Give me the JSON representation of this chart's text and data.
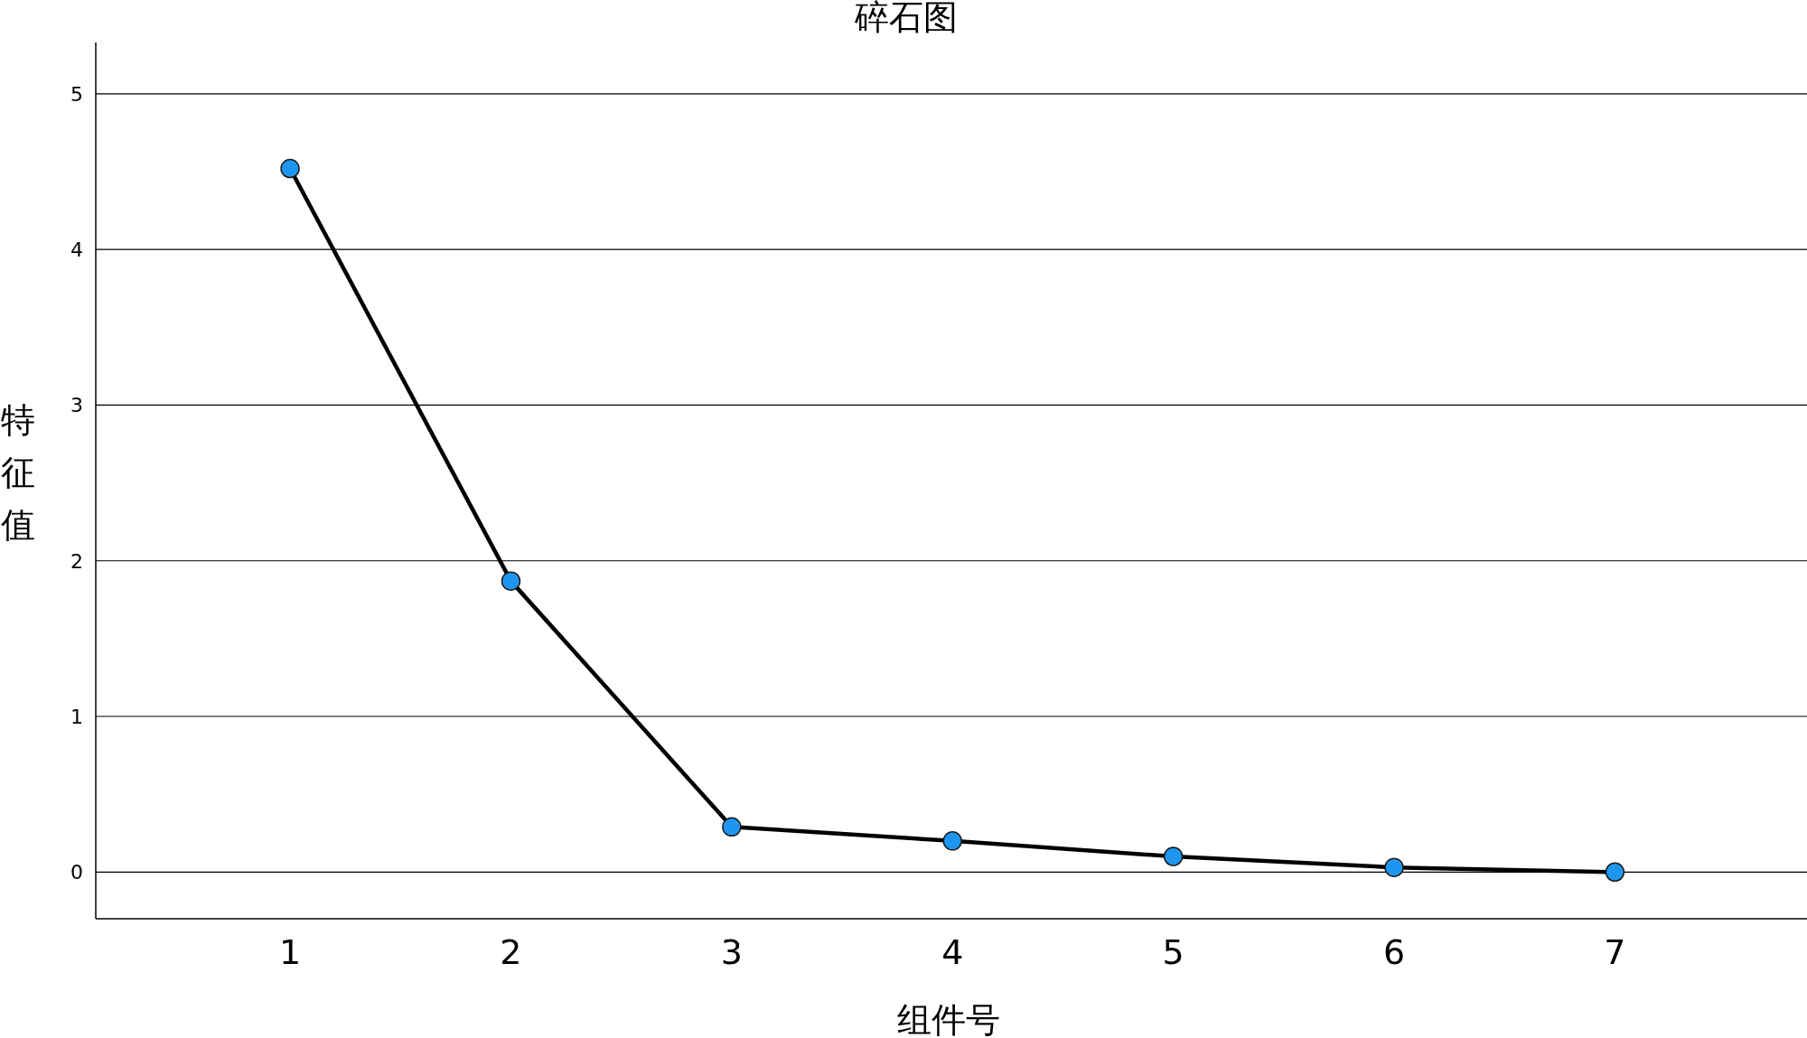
{
  "chart_data": {
    "type": "line",
    "title": "碎石图",
    "xlabel": "组件号",
    "ylabel": "特征值",
    "x": [
      1,
      2,
      3,
      4,
      5,
      6,
      7
    ],
    "series": [
      {
        "color": "#000000",
        "colors": [
          "#1e96f0",
          "#1e96f0",
          "#1e96f0",
          "#1e96f0",
          "#1e96f0",
          "#1e96f0",
          "#1e96f0"
        ],
        "values": [
          4.52,
          1.87,
          0.29,
          0.2,
          0.1,
          0.03,
          0.0
        ]
      }
    ],
    "marker": "circle",
    "line_style": "solid",
    "xlim": [
      0.12,
      7.87
    ],
    "xticks": [
      1,
      2,
      3,
      4,
      5,
      6,
      7
    ],
    "ylim": [
      -0.3,
      5.33
    ],
    "yticks": [
      0,
      1,
      2,
      3,
      4,
      5
    ],
    "grid": "y"
  }
}
